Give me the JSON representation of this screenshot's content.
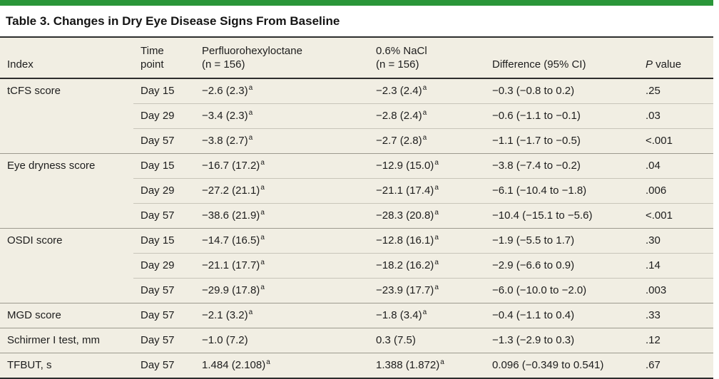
{
  "colors": {
    "accent_green": "#2a9639",
    "table_bg": "#f1eee3",
    "rule_dark": "#2d2d2d",
    "row_line": "#c8c5b9",
    "group_line": "#9c9a8e"
  },
  "title": "Table 3. Changes in Dry Eye Disease Signs From Baseline",
  "table": {
    "columns": [
      {
        "id": "index",
        "label": "Index"
      },
      {
        "id": "time",
        "label": "Time\npoint"
      },
      {
        "id": "pfh",
        "label": "Perfluorohexyloctane\n(n = 156)"
      },
      {
        "id": "nacl",
        "label": "0.6% NaCl\n(n = 156)"
      },
      {
        "id": "diff",
        "label": "Difference (95% CI)"
      },
      {
        "id": "p",
        "label": "P value"
      }
    ],
    "footnote_marker": "a",
    "rows": [
      {
        "index": "tCFS score",
        "time": "Day 15",
        "pfh": "−2.6 (2.3)",
        "pfh_sup": "a",
        "nacl": "−2.3 (2.4)",
        "nacl_sup": "a",
        "diff": "−0.3 (−0.8 to 0.2)",
        "p": ".25",
        "group_start": true
      },
      {
        "index": "",
        "time": "Day 29",
        "pfh": "−3.4 (2.3)",
        "pfh_sup": "a",
        "nacl": "−2.8 (2.4)",
        "nacl_sup": "a",
        "diff": "−0.6 (−1.1 to −0.1)",
        "p": ".03",
        "group_start": false
      },
      {
        "index": "",
        "time": "Day 57",
        "pfh": "−3.8 (2.7)",
        "pfh_sup": "a",
        "nacl": "−2.7 (2.8)",
        "nacl_sup": "a",
        "diff": "−1.1 (−1.7 to −0.5)",
        "p": "<.001",
        "group_start": false
      },
      {
        "index": "Eye dryness score",
        "time": "Day 15",
        "pfh": "−16.7 (17.2)",
        "pfh_sup": "a",
        "nacl": "−12.9 (15.0)",
        "nacl_sup": "a",
        "diff": "−3.8 (−7.4 to −0.2)",
        "p": ".04",
        "group_start": true
      },
      {
        "index": "",
        "time": "Day 29",
        "pfh": "−27.2 (21.1)",
        "pfh_sup": "a",
        "nacl": "−21.1 (17.4)",
        "nacl_sup": "a",
        "diff": "−6.1 (−10.4 to −1.8)",
        "p": ".006",
        "group_start": false
      },
      {
        "index": "",
        "time": "Day 57",
        "pfh": "−38.6 (21.9)",
        "pfh_sup": "a",
        "nacl": "−28.3 (20.8)",
        "nacl_sup": "a",
        "diff": "−10.4 (−15.1 to −5.6)",
        "p": "<.001",
        "group_start": false
      },
      {
        "index": "OSDI score",
        "time": "Day 15",
        "pfh": "−14.7 (16.5)",
        "pfh_sup": "a",
        "nacl": "−12.8 (16.1)",
        "nacl_sup": "a",
        "diff": "−1.9 (−5.5 to 1.7)",
        "p": ".30",
        "group_start": true
      },
      {
        "index": "",
        "time": "Day 29",
        "pfh": "−21.1 (17.7)",
        "pfh_sup": "a",
        "nacl": "−18.2 (16.2)",
        "nacl_sup": "a",
        "diff": "−2.9 (−6.6 to 0.9)",
        "p": ".14",
        "group_start": false
      },
      {
        "index": "",
        "time": "Day 57",
        "pfh": "−29.9 (17.8)",
        "pfh_sup": "a",
        "nacl": "−23.9 (17.7)",
        "nacl_sup": "a",
        "diff": "−6.0 (−10.0 to −2.0)",
        "p": ".003",
        "group_start": false
      },
      {
        "index": "MGD score",
        "time": "Day 57",
        "pfh": "−2.1 (3.2)",
        "pfh_sup": "a",
        "nacl": "−1.8 (3.4)",
        "nacl_sup": "a",
        "diff": "−0.4 (−1.1 to 0.4)",
        "p": ".33",
        "group_start": true
      },
      {
        "index": "Schirmer I test, mm",
        "time": "Day 57",
        "pfh": "−1.0 (7.2)",
        "pfh_sup": "",
        "nacl": "0.3 (7.5)",
        "nacl_sup": "",
        "diff": "−1.3 (−2.9 to 0.3)",
        "p": ".12",
        "group_start": true
      },
      {
        "index": "TFBUT, s",
        "time": "Day 57",
        "pfh": "1.484 (2.108)",
        "pfh_sup": "a",
        "nacl": "1.388 (1.872)",
        "nacl_sup": "a",
        "diff": "0.096 (−0.349 to 0.541)",
        "p": ".67",
        "group_start": true
      }
    ]
  }
}
